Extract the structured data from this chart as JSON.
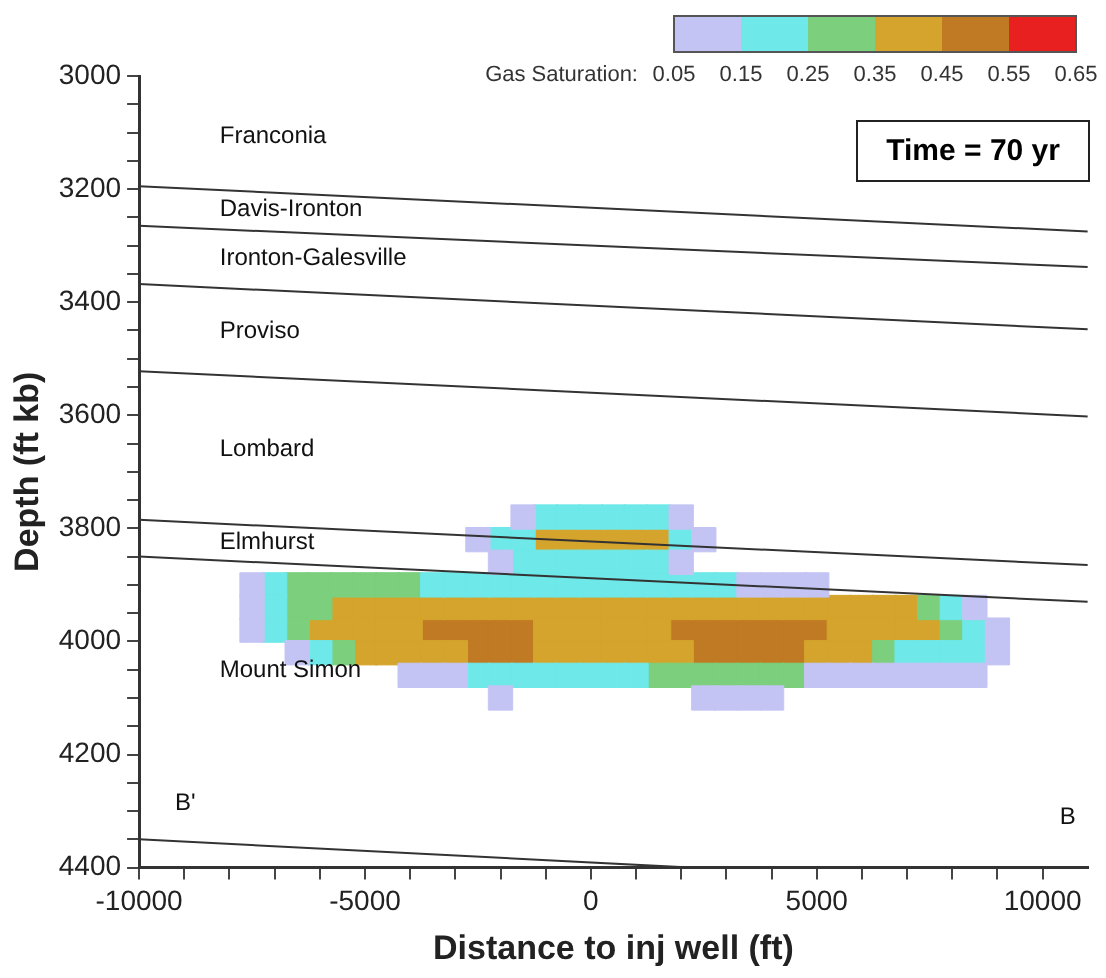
{
  "chart_data": {
    "type": "scatter",
    "xlabel": "Distance to inj well (ft)",
    "ylabel": "Depth (ft kb)",
    "clabel": "Gas Saturation:",
    "clim": [
      0.05,
      0.65
    ],
    "cticks": [
      0.05,
      0.15,
      0.25,
      0.35,
      0.45,
      0.55,
      0.65
    ],
    "xlim": [
      -10000,
      11000
    ],
    "xticks": [
      -10000,
      {
        "value": -9000,
        "label": null
      },
      {
        "value": -8000,
        "label": null
      },
      {
        "value": -7000,
        "label": null
      },
      {
        "value": -6000,
        "label": null
      },
      -5000,
      {
        "value": -4000,
        "label": null
      },
      {
        "value": -3000,
        "label": null
      },
      {
        "value": -2000,
        "label": null
      },
      {
        "value": -1000,
        "label": null
      },
      0,
      {
        "value": 1000,
        "label": null
      },
      {
        "value": 2000,
        "label": null
      },
      {
        "value": 3000,
        "label": null
      },
      {
        "value": 4000,
        "label": null
      },
      5000,
      {
        "value": 6000,
        "label": null
      },
      {
        "value": 7000,
        "label": null
      },
      {
        "value": 8000,
        "label": null
      },
      {
        "value": 9000,
        "label": null
      },
      10000
    ],
    "ylim": [
      4400,
      3000
    ],
    "yticks": [
      3000,
      {
        "value": 3050,
        "label": null
      },
      {
        "value": 3100,
        "label": null
      },
      {
        "value": 3150,
        "label": null
      },
      3200,
      {
        "value": 3250,
        "label": null
      },
      {
        "value": 3300,
        "label": null
      },
      {
        "value": 3350,
        "label": null
      },
      3400,
      {
        "value": 3450,
        "label": null
      },
      {
        "value": 3500,
        "label": null
      },
      {
        "value": 3550,
        "label": null
      },
      3600,
      {
        "value": 3650,
        "label": null
      },
      {
        "value": 3700,
        "label": null
      },
      {
        "value": 3750,
        "label": null
      },
      3800,
      {
        "value": 3850,
        "label": null
      },
      {
        "value": 3900,
        "label": null
      },
      {
        "value": 3950,
        "label": null
      },
      4000,
      {
        "value": 4050,
        "label": null
      },
      {
        "value": 4100,
        "label": null
      },
      {
        "value": 4150,
        "label": null
      },
      4200,
      {
        "value": 4250,
        "label": null
      },
      {
        "value": 4300,
        "label": null
      },
      {
        "value": 4350,
        "label": null
      },
      4400
    ],
    "grid": false,
    "legend": false,
    "line_style": "solid",
    "series": [
      {
        "type": "line",
        "color": "#333333",
        "x": [
          -10000,
          11000
        ],
        "values": [
          3195,
          3275
        ]
      },
      {
        "type": "line",
        "color": "#333333",
        "x": [
          -10000,
          11000
        ],
        "values": [
          3265,
          3338
        ]
      },
      {
        "type": "line",
        "color": "#333333",
        "x": [
          -10000,
          11000
        ],
        "values": [
          3368,
          3448
        ]
      },
      {
        "type": "line",
        "color": "#333333",
        "x": [
          -10000,
          11000
        ],
        "values": [
          3522,
          3602
        ]
      },
      {
        "type": "line",
        "color": "#333333",
        "x": [
          -10000,
          11000
        ],
        "values": [
          3785,
          3865
        ]
      },
      {
        "type": "line",
        "color": "#333333",
        "x": [
          -10000,
          11000
        ],
        "values": [
          3850,
          3930
        ]
      },
      {
        "type": "line",
        "color": "#333333",
        "x": [
          -10000,
          2200
        ],
        "values": [
          4350,
          4400
        ]
      },
      {
        "marker": "square",
        "color": "#c4c4f4",
        "x": [
          -1500,
          2000,
          -2500,
          2500,
          -2000,
          2000,
          -7500,
          3500,
          4000,
          4500,
          5000,
          -7500,
          8500,
          -7500,
          9000,
          -6500,
          9000,
          -4000,
          -3500,
          -3000,
          5000,
          5500,
          6000,
          6500,
          7000,
          7500,
          8000,
          8500,
          -2000,
          2500,
          3000,
          3500,
          4000
        ],
        "values": [
          3780,
          3780,
          3820,
          3820,
          3860,
          3860,
          3900,
          3900,
          3900,
          3900,
          3900,
          3940,
          3940,
          3980,
          3980,
          4020,
          4020,
          4060,
          4060,
          4060,
          4060,
          4060,
          4060,
          4060,
          4060,
          4060,
          4060,
          4060,
          4100,
          4100,
          4100,
          4100,
          4100
        ]
      },
      {
        "marker": "square",
        "color": "#6ee8e8",
        "x": [
          -1000,
          -500,
          0,
          500,
          1000,
          1500,
          -2000,
          -1500,
          2000,
          -1500,
          -1000,
          -500,
          0,
          500,
          1000,
          1500,
          -7000,
          -3500,
          -3000,
          -2500,
          -2000,
          -1500,
          -1000,
          -500,
          0,
          500,
          1000,
          1500,
          2000,
          2500,
          3000,
          -7000,
          8000,
          -7000,
          8500,
          -6000,
          7000,
          7500,
          8000,
          8500,
          -2500,
          -2000,
          -1500,
          -1000,
          -500,
          0,
          500,
          1000
        ],
        "values": [
          3780,
          3780,
          3780,
          3780,
          3780,
          3780,
          3820,
          3820,
          3820,
          3860,
          3860,
          3860,
          3860,
          3860,
          3860,
          3860,
          3900,
          3900,
          3900,
          3900,
          3900,
          3900,
          3900,
          3900,
          3900,
          3900,
          3900,
          3900,
          3900,
          3900,
          3900,
          3940,
          3940,
          3980,
          3980,
          4020,
          4020,
          4020,
          4020,
          4020,
          4060,
          4060,
          4060,
          4060,
          4060,
          4060,
          4060,
          4060
        ]
      },
      {
        "marker": "square",
        "color": "#7ccf7c",
        "x": [
          -6500,
          -6000,
          -5500,
          -5000,
          -4500,
          -4000,
          -6500,
          -6000,
          7500,
          -6500,
          8000,
          -5500,
          6500,
          1500,
          2000,
          2500,
          3000,
          3500,
          4000,
          4500
        ],
        "values": [
          3900,
          3900,
          3900,
          3900,
          3900,
          3900,
          3940,
          3940,
          3940,
          3980,
          3980,
          4020,
          4020,
          4060,
          4060,
          4060,
          4060,
          4060,
          4060,
          4060
        ]
      },
      {
        "marker": "square",
        "color": "#d4a42c",
        "x": [
          -1000,
          -500,
          0,
          500,
          1000,
          1500,
          -5500,
          -5000,
          -4500,
          -4000,
          -3500,
          -3000,
          -2500,
          -2000,
          -1500,
          -1000,
          -500,
          0,
          500,
          1000,
          1500,
          2000,
          2500,
          3000,
          3500,
          4000,
          4500,
          5000,
          5500,
          6000,
          6500,
          7000,
          -6000,
          -5500,
          -5000,
          -4500,
          -4000,
          -1000,
          -500,
          0,
          500,
          1000,
          1500,
          5500,
          6000,
          6500,
          7000,
          7500,
          -5000,
          -4500,
          -4000,
          -3500,
          -3000,
          -1000,
          -500,
          0,
          500,
          1000,
          1500,
          2000,
          5000,
          5500,
          6000
        ],
        "values": [
          3820,
          3820,
          3820,
          3820,
          3820,
          3820,
          3940,
          3940,
          3940,
          3940,
          3940,
          3940,
          3940,
          3940,
          3940,
          3940,
          3940,
          3940,
          3940,
          3940,
          3940,
          3940,
          3940,
          3940,
          3940,
          3940,
          3940,
          3940,
          3940,
          3940,
          3940,
          3940,
          3980,
          3980,
          3980,
          3980,
          3980,
          3980,
          3980,
          3980,
          3980,
          3980,
          3980,
          3980,
          3980,
          3980,
          3980,
          3980,
          4020,
          4020,
          4020,
          4020,
          4020,
          4020,
          4020,
          4020,
          4020,
          4020,
          4020,
          4020,
          4020,
          4020,
          4020
        ]
      },
      {
        "marker": "square",
        "color": "#c07a24",
        "x": [
          -3500,
          -3000,
          -2500,
          -2000,
          -1500,
          2000,
          2500,
          3000,
          3500,
          4000,
          4500,
          5000,
          -2500,
          -2000,
          -1500,
          2500,
          3000,
          3500,
          4000,
          4500
        ],
        "values": [
          3980,
          3980,
          3980,
          3980,
          3980,
          3980,
          3980,
          3980,
          3980,
          3980,
          3980,
          3980,
          4020,
          4020,
          4020,
          4020,
          4020,
          4020,
          4020,
          4020
        ]
      }
    ],
    "annotations": [
      "Time = 70 yr",
      "Franconia",
      "Davis-Ironton",
      "Ironton-Galesville",
      "Proviso",
      "Lombard",
      "Elmhurst",
      "Mount Simon",
      "B'",
      "B"
    ]
  }
}
